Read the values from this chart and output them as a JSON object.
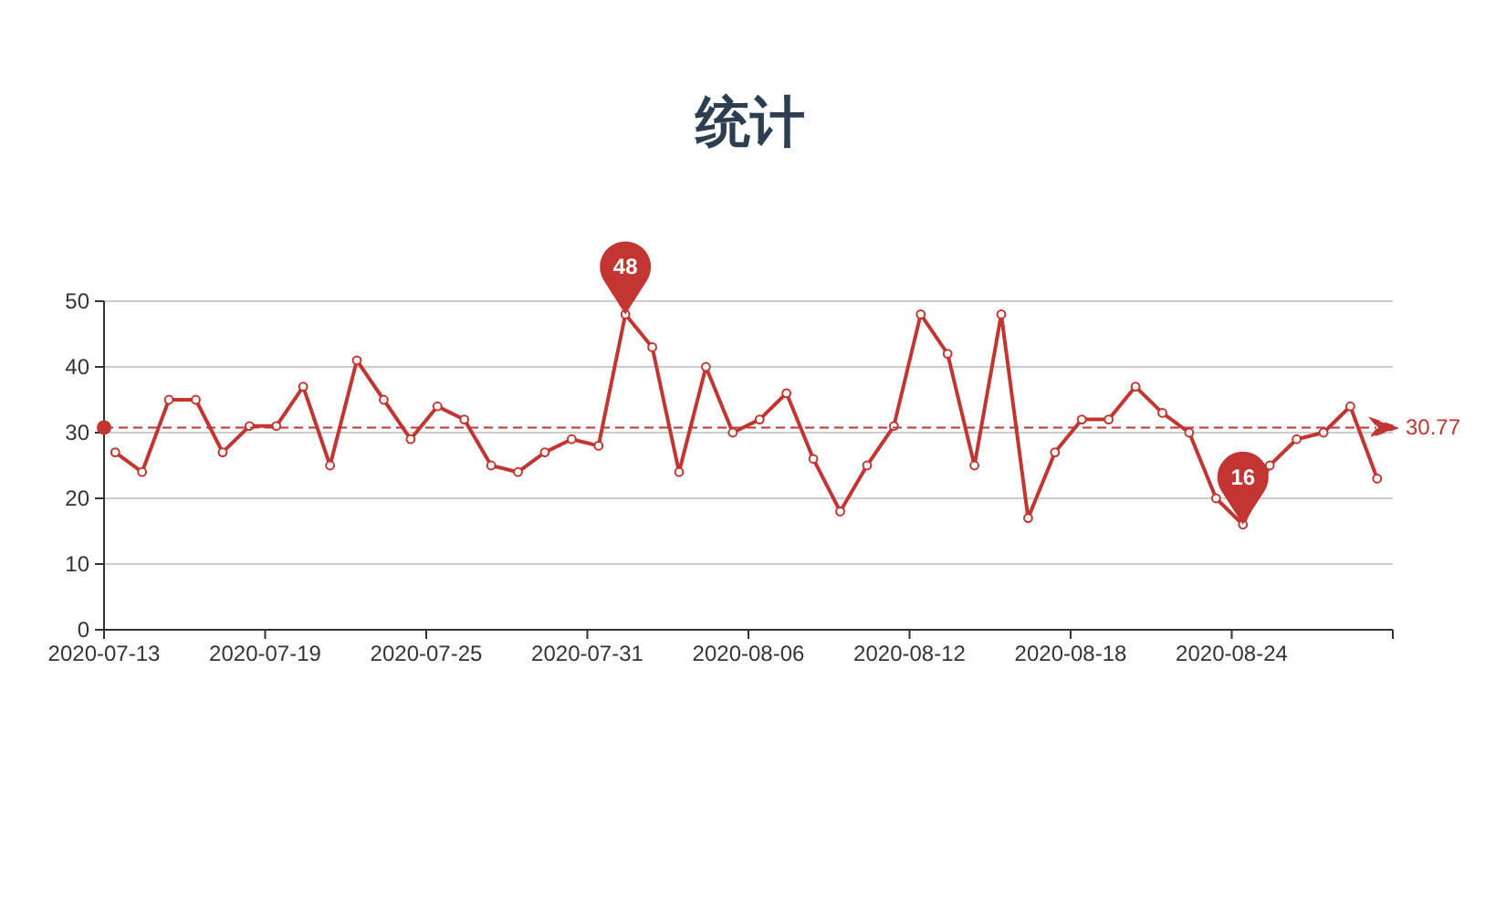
{
  "chart_data": {
    "type": "line",
    "title": "统计",
    "x": [
      "2020-07-13T10:00",
      "2020-07-14T10:00",
      "2020-07-15T10:00",
      "2020-07-16T10:00",
      "2020-07-17T10:00",
      "2020-07-18T10:00",
      "2020-07-19T10:00",
      "2020-07-20T10:00",
      "2020-07-21T10:00",
      "2020-07-22T10:00",
      "2020-07-23T10:00",
      "2020-07-24T10:00",
      "2020-07-25T10:00",
      "2020-07-26T10:00",
      "2020-07-27T10:00",
      "2020-07-28T10:00",
      "2020-07-29T10:00",
      "2020-07-30T10:00",
      "2020-07-31T10:00",
      "2020-08-01T10:00",
      "2020-08-02T10:00",
      "2020-08-03T10:00",
      "2020-08-04T10:00",
      "2020-08-05T10:00",
      "2020-08-06T10:00",
      "2020-08-07T10:00",
      "2020-08-08T10:00",
      "2020-08-09T10:00",
      "2020-08-10T10:00",
      "2020-08-11T10:00",
      "2020-08-12T10:00",
      "2020-08-13T10:00",
      "2020-08-14T10:00",
      "2020-08-15T10:00",
      "2020-08-16T10:00",
      "2020-08-17T10:00",
      "2020-08-18T10:00",
      "2020-08-19T10:00",
      "2020-08-20T10:00",
      "2020-08-21T10:00",
      "2020-08-22T10:00",
      "2020-08-23T10:00",
      "2020-08-24T10:00",
      "2020-08-25T10:00",
      "2020-08-26T10:00",
      "2020-08-27T10:00",
      "2020-08-28T10:00",
      "2020-08-29T10:00"
    ],
    "series": [
      {
        "color": "#c23531",
        "values": [
          27,
          24,
          35,
          35,
          27,
          31,
          31,
          37,
          25,
          41,
          35,
          29,
          34,
          32,
          25,
          24,
          27,
          29,
          28,
          48,
          43,
          24,
          40,
          30,
          32,
          36,
          26,
          18,
          25,
          31,
          48,
          42,
          25,
          48,
          17,
          27,
          32,
          32,
          37,
          33,
          30,
          20,
          16,
          25,
          29,
          30,
          34,
          23
        ]
      }
    ],
    "xlim": [
      "2020-07-13",
      "2020-08-30"
    ],
    "xticks": [
      "2020-07-13",
      "2020-07-19",
      "2020-07-25",
      "2020-07-31",
      "2020-08-06",
      "2020-08-12",
      "2020-08-18",
      "2020-08-24",
      {
        "value": "2020-08-30",
        "label": null
      }
    ],
    "ylim": [
      0,
      50
    ],
    "yticks": [
      0,
      10,
      20,
      30,
      40,
      50
    ],
    "grid": "y",
    "marker": "circle",
    "line_style": "solid",
    "ref_lines": [
      {
        "axis": "y",
        "value": 30.77,
        "label": "30.77",
        "color": "#c23531",
        "line_style": "dashed"
      }
    ],
    "annotations": [
      {
        "text": "48",
        "x": "2020-08-01T10:00",
        "y": 48
      },
      {
        "text": "16",
        "x": "2020-08-24T10:00",
        "y": 16
      }
    ]
  }
}
